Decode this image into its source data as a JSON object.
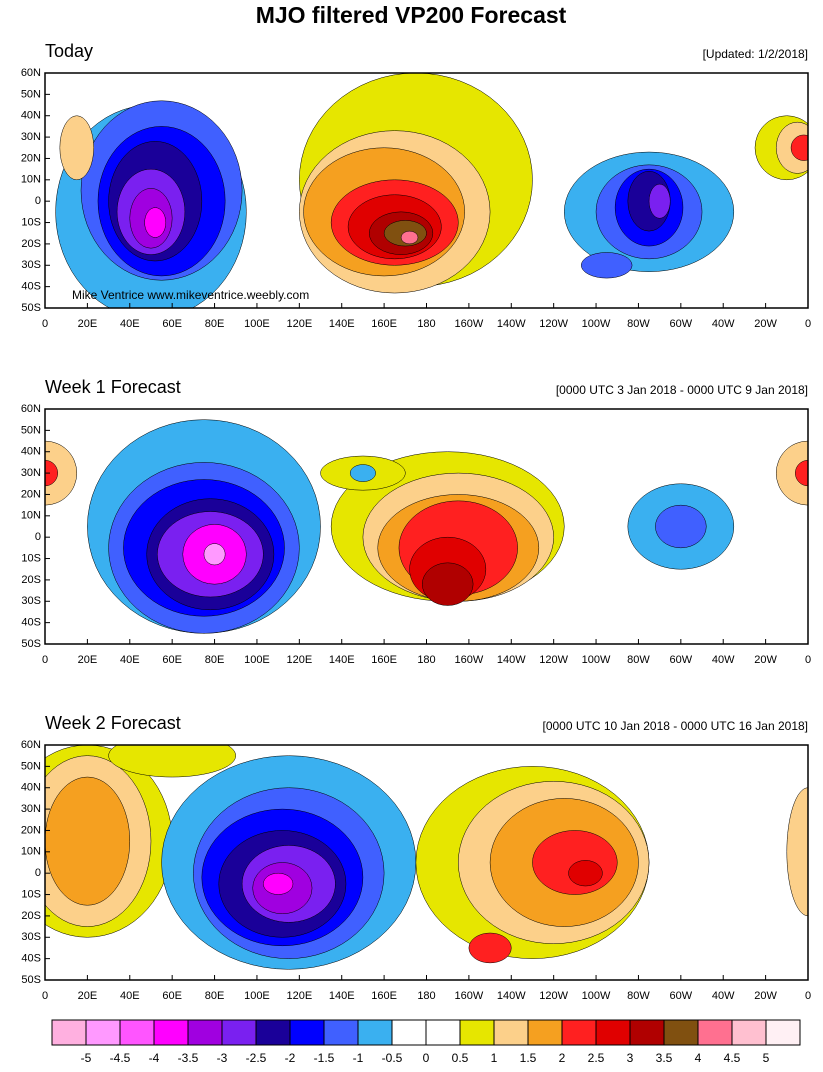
{
  "title": "MJO filtered VP200 Forecast",
  "panels": [
    {
      "title": "Today",
      "subtitle": "[Updated: 1/2/2018]"
    },
    {
      "title": "Week 1 Forecast",
      "subtitle": "[0000 UTC 3 Jan 2018 - 0000 UTC 9 Jan 2018]"
    },
    {
      "title": "Week 2 Forecast",
      "subtitle": "[0000 UTC 10 Jan 2018 - 0000 UTC 16 Jan 2018]"
    }
  ],
  "watermark": "Mike Ventrice www.mikeventrice.weebly.com",
  "lat_labels": [
    "60N",
    "50N",
    "40N",
    "30N",
    "20N",
    "10N",
    "0",
    "10S",
    "20S",
    "30S",
    "40S",
    "50S"
  ],
  "lon_labels": [
    "0",
    "20E",
    "40E",
    "60E",
    "80E",
    "100E",
    "120E",
    "140E",
    "160E",
    "180",
    "160W",
    "140W",
    "120W",
    "100W",
    "80W",
    "60W",
    "40W",
    "20W",
    "0"
  ],
  "colorbar": {
    "colors": [
      "#ffb0e0",
      "#ff99ff",
      "#ff55ff",
      "#ff00ff",
      "#a000e0",
      "#7a20f0",
      "#1a0099",
      "#0000ff",
      "#4060ff",
      "#3ab0f0",
      "#ffffff",
      "#ffffff",
      "#e6e600",
      "#fcd08a",
      "#f5a020",
      "#ff2020",
      "#e00000",
      "#b00000",
      "#805010",
      "#ff7090",
      "#ffc0d0",
      "#fff0f4"
    ],
    "levels": [
      -5,
      -4.5,
      -4,
      -3.5,
      -3,
      -2.5,
      -2,
      -1.5,
      -1,
      -0.5,
      0,
      0.5,
      1,
      1.5,
      2,
      2.5,
      3,
      3.5,
      4,
      4.5,
      5
    ]
  }
}
